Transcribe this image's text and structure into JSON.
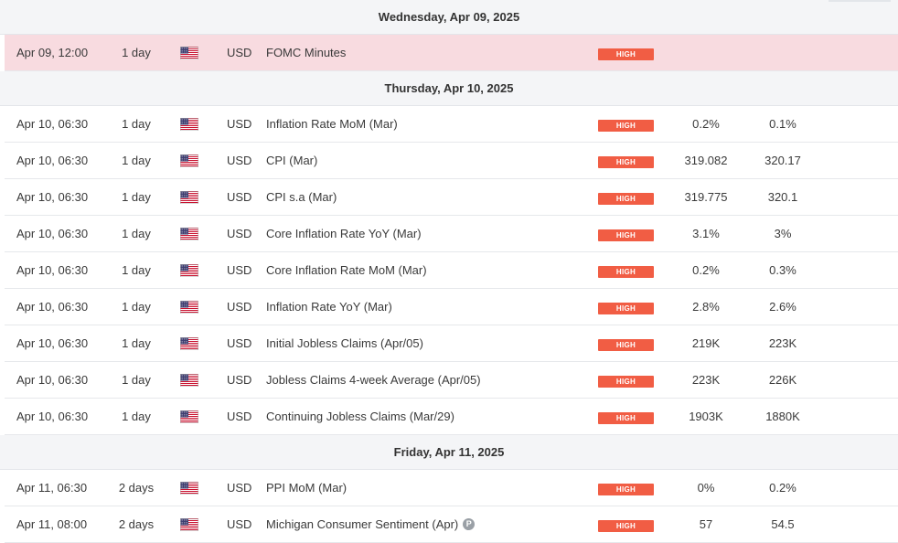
{
  "days": [
    {
      "label": "Wednesday, Apr 09, 2025",
      "events": [
        {
          "datetime": "Apr 09, 12:00",
          "duration": "1 day",
          "country_icon": "us-flag-icon",
          "currency": "USD",
          "event": "FOMC Minutes",
          "impact": "HIGH",
          "actual": "",
          "forecast": "",
          "highlight": true,
          "has_info_icon": false
        }
      ]
    },
    {
      "label": "Thursday, Apr 10, 2025",
      "events": [
        {
          "datetime": "Apr 10, 06:30",
          "duration": "1 day",
          "country_icon": "us-flag-icon",
          "currency": "USD",
          "event": "Inflation Rate MoM (Mar)",
          "impact": "HIGH",
          "actual": "0.2%",
          "forecast": "0.1%",
          "highlight": false,
          "has_info_icon": false
        },
        {
          "datetime": "Apr 10, 06:30",
          "duration": "1 day",
          "country_icon": "us-flag-icon",
          "currency": "USD",
          "event": "CPI (Mar)",
          "impact": "HIGH",
          "actual": "319.082",
          "forecast": "320.17",
          "highlight": false,
          "has_info_icon": false
        },
        {
          "datetime": "Apr 10, 06:30",
          "duration": "1 day",
          "country_icon": "us-flag-icon",
          "currency": "USD",
          "event": "CPI s.a (Mar)",
          "impact": "HIGH",
          "actual": "319.775",
          "forecast": "320.1",
          "highlight": false,
          "has_info_icon": false
        },
        {
          "datetime": "Apr 10, 06:30",
          "duration": "1 day",
          "country_icon": "us-flag-icon",
          "currency": "USD",
          "event": "Core Inflation Rate YoY (Mar)",
          "impact": "HIGH",
          "actual": "3.1%",
          "forecast": "3%",
          "highlight": false,
          "has_info_icon": false
        },
        {
          "datetime": "Apr 10, 06:30",
          "duration": "1 day",
          "country_icon": "us-flag-icon",
          "currency": "USD",
          "event": "Core Inflation Rate MoM (Mar)",
          "impact": "HIGH",
          "actual": "0.2%",
          "forecast": "0.3%",
          "highlight": false,
          "has_info_icon": false
        },
        {
          "datetime": "Apr 10, 06:30",
          "duration": "1 day",
          "country_icon": "us-flag-icon",
          "currency": "USD",
          "event": "Inflation Rate YoY (Mar)",
          "impact": "HIGH",
          "actual": "2.8%",
          "forecast": "2.6%",
          "highlight": false,
          "has_info_icon": false
        },
        {
          "datetime": "Apr 10, 06:30",
          "duration": "1 day",
          "country_icon": "us-flag-icon",
          "currency": "USD",
          "event": "Initial Jobless Claims (Apr/05)",
          "impact": "HIGH",
          "actual": "219K",
          "forecast": "223K",
          "highlight": false,
          "has_info_icon": false
        },
        {
          "datetime": "Apr 10, 06:30",
          "duration": "1 day",
          "country_icon": "us-flag-icon",
          "currency": "USD",
          "event": "Jobless Claims 4-week Average (Apr/05)",
          "impact": "HIGH",
          "actual": "223K",
          "forecast": "226K",
          "highlight": false,
          "has_info_icon": false
        },
        {
          "datetime": "Apr 10, 06:30",
          "duration": "1 day",
          "country_icon": "us-flag-icon",
          "currency": "USD",
          "event": "Continuing Jobless Claims (Mar/29)",
          "impact": "HIGH",
          "actual": "1903K",
          "forecast": "1880K",
          "highlight": false,
          "has_info_icon": false
        }
      ]
    },
    {
      "label": "Friday, Apr 11, 2025",
      "events": [
        {
          "datetime": "Apr 11, 06:30",
          "duration": "2 days",
          "country_icon": "us-flag-icon",
          "currency": "USD",
          "event": "PPI MoM (Mar)",
          "impact": "HIGH",
          "actual": "0%",
          "forecast": "0.2%",
          "highlight": false,
          "has_info_icon": false
        },
        {
          "datetime": "Apr 11, 08:00",
          "duration": "2 days",
          "country_icon": "us-flag-icon",
          "currency": "USD",
          "event": "Michigan Consumer Sentiment (Apr)",
          "impact": "HIGH",
          "actual": "57",
          "forecast": "54.5",
          "highlight": false,
          "has_info_icon": true,
          "info_icon_text": "P"
        }
      ]
    }
  ],
  "colors": {
    "high_badge": "#f15d44",
    "highlight_row": "#f8dbe0",
    "date_header_bg": "#f4f5f7",
    "border": "#e6e8eb"
  }
}
